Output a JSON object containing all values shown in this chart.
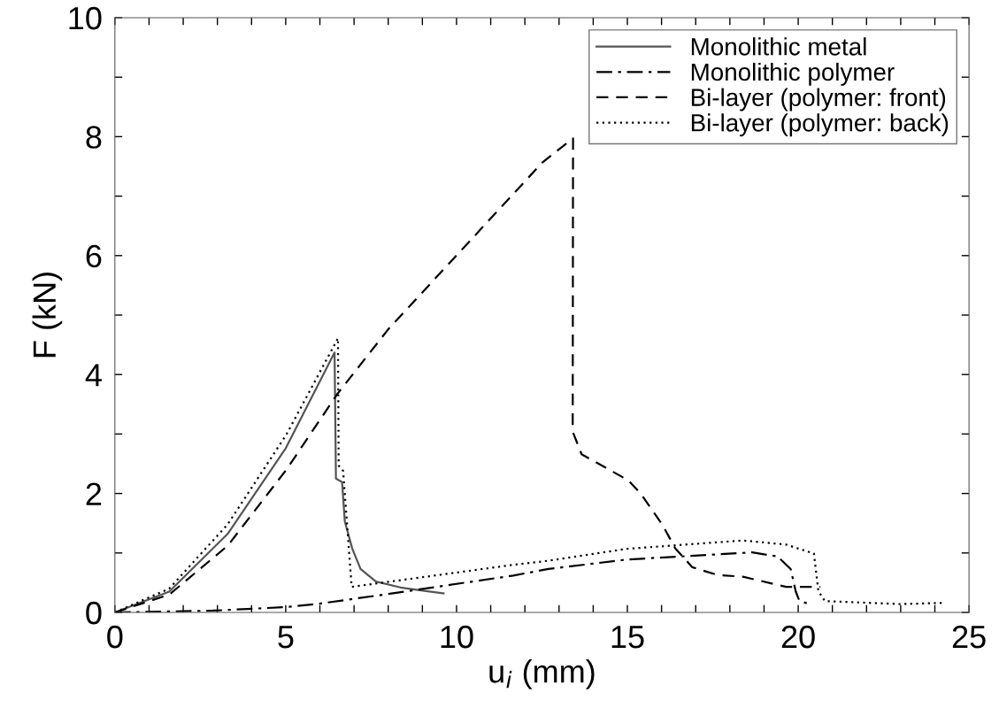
{
  "chart_data": {
    "type": "line",
    "xlabel": "u$_{i}$ (mm)",
    "ylabel": "F (kN)",
    "xlim": [
      0,
      25
    ],
    "ylim": [
      0,
      10
    ],
    "xticks": [
      0,
      {
        "value": 1,
        "label": null
      },
      {
        "value": 2,
        "label": null
      },
      {
        "value": 3,
        "label": null
      },
      {
        "value": 4,
        "label": null
      },
      5,
      {
        "value": 6,
        "label": null
      },
      {
        "value": 7,
        "label": null
      },
      {
        "value": 8,
        "label": null
      },
      {
        "value": 9,
        "label": null
      },
      10,
      {
        "value": 11,
        "label": null
      },
      {
        "value": 12,
        "label": null
      },
      {
        "value": 13,
        "label": null
      },
      {
        "value": 14,
        "label": null
      },
      15,
      {
        "value": 16,
        "label": null
      },
      {
        "value": 17,
        "label": null
      },
      {
        "value": 18,
        "label": null
      },
      {
        "value": 19,
        "label": null
      },
      20,
      {
        "value": 21,
        "label": null
      },
      {
        "value": 22,
        "label": null
      },
      {
        "value": 23,
        "label": null
      },
      {
        "value": 24,
        "label": null
      },
      25
    ],
    "yticks": [
      0,
      {
        "value": 1,
        "label": null
      },
      2,
      {
        "value": 3,
        "label": null
      },
      4,
      {
        "value": 5,
        "label": null
      },
      6,
      {
        "value": 7,
        "label": null
      },
      8,
      {
        "value": 9,
        "label": null
      },
      10
    ],
    "grid": false,
    "legend": "top right",
    "marker": "none",
    "series": [
      {
        "name": "Monolithic metal",
        "color": "#555555",
        "line_style": "solid",
        "x": [
          0,
          1.59,
          3.3,
          5.0,
          6.43,
          6.47,
          6.65,
          6.73,
          6.95,
          7.19,
          7.64,
          8.36,
          8.96,
          9.62
        ],
        "values": [
          0,
          0.35,
          1.32,
          2.76,
          4.37,
          2.25,
          2.19,
          1.53,
          1.07,
          0.73,
          0.52,
          0.42,
          0.37,
          0.32
        ]
      },
      {
        "name": "Monolithic polymer",
        "color": "#000000",
        "line_style": "dashdot",
        "x": [
          0,
          2.87,
          5.02,
          6.02,
          8.0,
          11.66,
          12.69,
          15.0,
          18.65,
          19.4,
          19.78,
          19.93,
          20.03,
          20.27
        ],
        "values": [
          0,
          0.03,
          0.09,
          0.15,
          0.31,
          0.62,
          0.73,
          0.89,
          1.01,
          0.94,
          0.73,
          0.35,
          0.2,
          0.15
        ]
      },
      {
        "name": "Bi-layer (polymer: front)",
        "color": "#000000",
        "line_style": "dashed",
        "x": [
          0,
          1.59,
          3.3,
          5.02,
          6.52,
          8.0,
          12.52,
          13.41,
          13.4,
          13.66,
          15.03,
          15.4,
          16.03,
          16.4,
          16.9,
          17.63,
          18.38,
          19.65,
          20.65
        ],
        "values": [
          0,
          0.3,
          1.12,
          2.4,
          3.68,
          4.76,
          7.57,
          7.97,
          3.04,
          2.66,
          2.22,
          1.99,
          1.47,
          1.08,
          0.76,
          0.63,
          0.6,
          0.43,
          0.43
        ]
      },
      {
        "name": "Bi-layer (polymer: back)",
        "color": "#000000",
        "line_style": "dotted",
        "x": [
          0,
          1.59,
          3.3,
          5.02,
          6.53,
          6.55,
          6.68,
          6.93,
          11.66,
          12.69,
          15.0,
          18.38,
          19.65,
          20.46,
          20.59,
          20.78,
          23.0,
          24.21
        ],
        "values": [
          0,
          0.4,
          1.48,
          2.99,
          4.61,
          2.47,
          2.38,
          0.43,
          0.8,
          0.87,
          1.07,
          1.21,
          1.14,
          0.99,
          0.36,
          0.19,
          0.14,
          0.16
        ]
      }
    ]
  }
}
